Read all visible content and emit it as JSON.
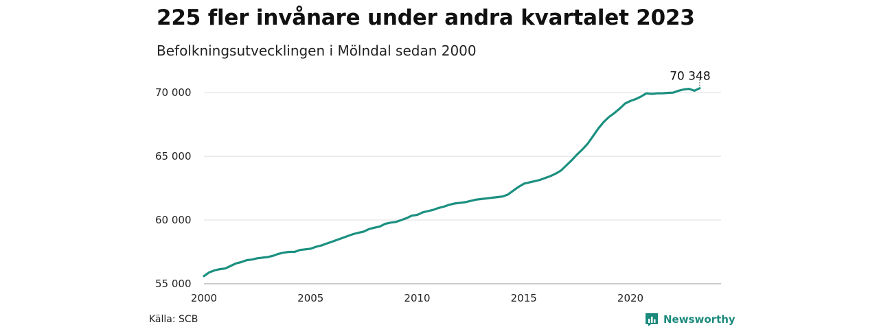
{
  "title": "225 fler invånare under andra kvartalet 2023",
  "subtitle": "Befolkningsutvecklingen i Mölndal sedan 2000",
  "source": "Källa: SCB",
  "brand": {
    "name": "Newsworthy",
    "icon": "bar-chart-logo-icon",
    "color": "#1c8a7c"
  },
  "chart_data": {
    "type": "line",
    "line_color": "#1b9080",
    "grid": true,
    "xlim": [
      2000,
      2024.25
    ],
    "ylim": [
      55000,
      72000
    ],
    "x_ticks": [
      2000,
      2005,
      2010,
      2015,
      2020
    ],
    "x_tick_labels": [
      "2000",
      "2005",
      "2010",
      "2015",
      "2020"
    ],
    "y_ticks": [
      55000,
      60000,
      65000,
      70000
    ],
    "y_tick_labels": [
      "55 000",
      "60 000",
      "65 000",
      "70 000"
    ],
    "end_label": "70 348",
    "series": [
      {
        "x": [
          2000.0,
          2000.25,
          2000.5,
          2000.75,
          2001.0,
          2001.25,
          2001.5,
          2001.75,
          2002.0,
          2002.25,
          2002.5,
          2002.75,
          2003.0,
          2003.25,
          2003.5,
          2003.75,
          2004.0,
          2004.25,
          2004.5,
          2004.75,
          2005.0,
          2005.25,
          2005.5,
          2005.75,
          2006.0,
          2006.25,
          2006.5,
          2006.75,
          2007.0,
          2007.25,
          2007.5,
          2007.75,
          2008.0,
          2008.25,
          2008.5,
          2008.75,
          2009.0,
          2009.25,
          2009.5,
          2009.75,
          2010.0,
          2010.25,
          2010.5,
          2010.75,
          2011.0,
          2011.25,
          2011.5,
          2011.75,
          2012.0,
          2012.25,
          2012.5,
          2012.75,
          2013.0,
          2013.25,
          2013.5,
          2013.75,
          2014.0,
          2014.25,
          2014.5,
          2014.75,
          2015.0,
          2015.25,
          2015.5,
          2015.75,
          2016.0,
          2016.25,
          2016.5,
          2016.75,
          2017.0,
          2017.25,
          2017.5,
          2017.75,
          2018.0,
          2018.25,
          2018.5,
          2018.75,
          2019.0,
          2019.25,
          2019.5,
          2019.75,
          2020.0,
          2020.25,
          2020.5,
          2020.75,
          2021.0,
          2021.25,
          2021.5,
          2021.75,
          2022.0,
          2022.25,
          2022.5,
          2022.75,
          2023.0,
          2023.25
        ],
        "y": [
          55600,
          55900,
          56050,
          56150,
          56200,
          56400,
          56600,
          56700,
          56850,
          56900,
          57000,
          57050,
          57100,
          57200,
          57350,
          57450,
          57500,
          57500,
          57650,
          57700,
          57750,
          57900,
          58000,
          58150,
          58300,
          58450,
          58600,
          58750,
          58900,
          59000,
          59100,
          59300,
          59400,
          59500,
          59700,
          59800,
          59850,
          60000,
          60150,
          60350,
          60400,
          60600,
          60700,
          60800,
          60950,
          61050,
          61200,
          61300,
          61350,
          61400,
          61500,
          61600,
          61650,
          61700,
          61750,
          61800,
          61850,
          62000,
          62300,
          62600,
          62850,
          62950,
          63050,
          63150,
          63300,
          63450,
          63650,
          63900,
          64300,
          64700,
          65150,
          65550,
          66000,
          66600,
          67200,
          67700,
          68100,
          68400,
          68750,
          69150,
          69350,
          69500,
          69700,
          69950,
          69900,
          69950,
          69950,
          69980,
          70000,
          70150,
          70250,
          70300,
          70150,
          70348
        ]
      }
    ]
  }
}
